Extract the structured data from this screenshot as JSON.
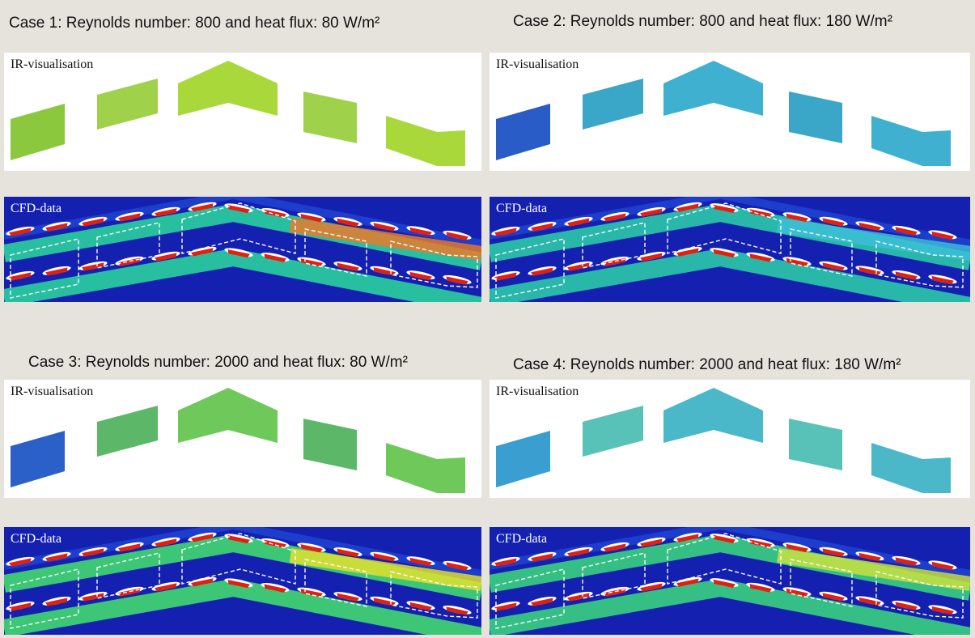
{
  "cases": [
    {
      "title": "Case 1: Reynolds number: 800 and heat flux: 80 W/m²",
      "ir_label": "IR-visualisation",
      "cfd_label": "CFD-data"
    },
    {
      "title": "Case 2: Reynolds number: 800 and heat flux: 180 W/m²",
      "ir_label": "IR-visualisation",
      "cfd_label": "CFD-data"
    },
    {
      "title": "Case 3: Reynolds number: 2000 and heat flux: 80 W/m²",
      "ir_label": "IR-visualisation",
      "cfd_label": "CFD-data"
    },
    {
      "title": "Case 4: Reynolds number: 2000 and heat flux: 180 W/m²",
      "ir_label": "IR-visualisation",
      "cfd_label": "CFD-data"
    }
  ],
  "colors": {
    "background": "#e6e2dc",
    "cfd_low": "#1420b0",
    "cfd_mid": "#22c8a8",
    "cfd_high": "#e02010",
    "ir_warm": "#8fd03a",
    "ir_cool": "#2b6fd0"
  }
}
